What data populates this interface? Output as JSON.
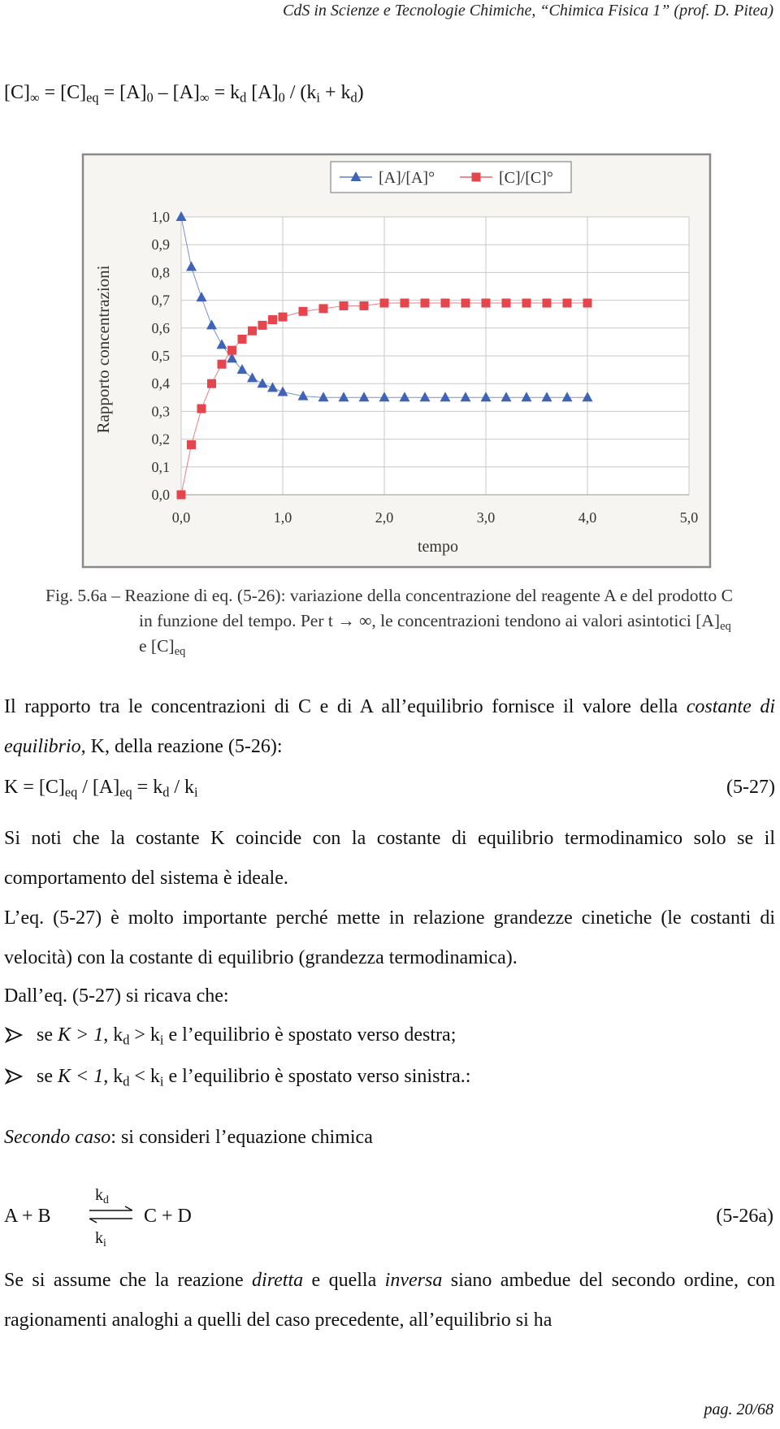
{
  "header": "CdS in Scienze e Tecnologie Chimiche, “Chimica Fisica 1” (prof. D. Pitea)",
  "equation_1": [
    {
      "text": "[C]"
    },
    {
      "text": "∞",
      "sub": true
    },
    {
      "text": " = [C]"
    },
    {
      "text": "eq",
      "sub": true
    },
    {
      "text": " = [A]"
    },
    {
      "text": "0",
      "sub": true
    },
    {
      "text": " – [A]"
    },
    {
      "text": "∞",
      "sub": true
    },
    {
      "text": " = k"
    },
    {
      "text": "d",
      "sub": true
    },
    {
      "text": " [A]"
    },
    {
      "text": "0",
      "sub": true
    },
    {
      "text": " / (k"
    },
    {
      "text": "i",
      "sub": true
    },
    {
      "text": " + k"
    },
    {
      "text": "d",
      "sub": true
    },
    {
      "text": ")"
    }
  ],
  "chart_data": {
    "type": "line",
    "x_label": "tempo",
    "y_label": "Rapporto concentrazioni",
    "x": [
      0,
      0.1,
      0.2,
      0.3,
      0.4,
      0.5,
      0.6,
      0.7,
      0.8,
      0.9,
      1.0,
      1.2,
      1.4,
      1.6,
      1.8,
      2.0,
      2.2,
      2.4,
      2.6,
      2.8,
      3.0,
      3.2,
      3.4,
      3.6,
      3.8,
      4.0
    ],
    "series": [
      {
        "name": "[A]/[A]°",
        "color": "#3f63b5",
        "marker": "triangle",
        "values": [
          1.0,
          0.82,
          0.71,
          0.61,
          0.54,
          0.49,
          0.45,
          0.42,
          0.4,
          0.385,
          0.37,
          0.355,
          0.35,
          0.35,
          0.35,
          0.35,
          0.35,
          0.35,
          0.35,
          0.35,
          0.35,
          0.35,
          0.35,
          0.35,
          0.35,
          0.35
        ]
      },
      {
        "name": "[C]/[C]°",
        "color": "#e5454c",
        "marker": "square",
        "values": [
          0.0,
          0.18,
          0.31,
          0.4,
          0.47,
          0.52,
          0.56,
          0.59,
          0.61,
          0.63,
          0.64,
          0.66,
          0.67,
          0.68,
          0.68,
          0.69,
          0.69,
          0.69,
          0.69,
          0.69,
          0.69,
          0.69,
          0.69,
          0.69,
          0.69,
          0.69
        ]
      }
    ],
    "xlim": [
      0,
      5
    ],
    "xticks": [
      {
        "value": 0,
        "label": "0,0"
      },
      {
        "value": 1,
        "label": "1,0"
      },
      {
        "value": 2,
        "label": "2,0"
      },
      {
        "value": 3,
        "label": "3,0"
      },
      {
        "value": 4,
        "label": "4,0"
      },
      {
        "value": 5,
        "label": "5,0"
      }
    ],
    "ylim": [
      0,
      1
    ],
    "yticks": [
      {
        "value": 0,
        "label": "0,0"
      },
      {
        "value": 0.1,
        "label": "0,1"
      },
      {
        "value": 0.2,
        "label": "0,2"
      },
      {
        "value": 0.3,
        "label": "0,3"
      },
      {
        "value": 0.4,
        "label": "0,4"
      },
      {
        "value": 0.5,
        "label": "0,5"
      },
      {
        "value": 0.6,
        "label": "0,6"
      },
      {
        "value": 0.7,
        "label": "0,7"
      },
      {
        "value": 0.8,
        "label": "0,8"
      },
      {
        "value": 0.9,
        "label": "0,9"
      },
      {
        "value": 1.0,
        "label": "1,0"
      }
    ],
    "grid": true,
    "legend": "top"
  },
  "caption": [
    {
      "text": "Fig. 5.6a – Reazione di eq. (5-26): variazione della concentrazione del reagente A e del prodotto C in funzione del tempo. Per t → ∞, le concentrazioni tendono ai valori asintotici [A]"
    },
    {
      "text": "eq",
      "sub": true
    },
    {
      "text": " e [C]"
    },
    {
      "text": "eq",
      "sub": true
    }
  ],
  "paragraph_1": [
    {
      "text": "Il rapporto tra le concentrazioni di C e di A all’equilibrio fornisce il valore della "
    },
    {
      "text": "costante di equilibrio",
      "italic": true
    },
    {
      "text": ", K, della reazione (5-26):"
    }
  ],
  "equation_2": {
    "runs": [
      {
        "text": "K = [C]"
      },
      {
        "text": "eq",
        "sub": true
      },
      {
        "text": " / [A]"
      },
      {
        "text": "eq",
        "sub": true
      },
      {
        "text": " = k"
      },
      {
        "text": "d",
        "sub": true
      },
      {
        "text": " / k"
      },
      {
        "text": "i",
        "sub": true
      }
    ],
    "number": "(5-27)"
  },
  "paragraph_2": [
    {
      "text": "Si noti che la costante K coincide con la costante di equilibrio termodinamico solo se il comportamento del sistema è ideale."
    }
  ],
  "paragraph_3": [
    {
      "text": "L’eq. (5-27) è molto importante perché mette in relazione grandezze cinetiche (le costanti di velocità) con la costante di equilibrio (grandezza termodinamica)."
    }
  ],
  "paragraph_4": [
    {
      "text": "Dall’eq. (5-27) si ricava che:"
    }
  ],
  "bullets": [
    [
      {
        "text": "se "
      },
      {
        "text": "K > 1",
        "italic": true
      },
      {
        "text": ", k"
      },
      {
        "text": "d",
        "sub": true
      },
      {
        "text": " > k"
      },
      {
        "text": "i",
        "sub": true
      },
      {
        "text": " e l’equilibrio è spostato verso destra;"
      }
    ],
    [
      {
        "text": "se "
      },
      {
        "text": "K < 1",
        "italic": true
      },
      {
        "text": ", k"
      },
      {
        "text": "d",
        "sub": true
      },
      {
        "text": " < k"
      },
      {
        "text": "i",
        "sub": true
      },
      {
        "text": " e l’equilibrio è spostato verso sinistra.:"
      }
    ]
  ],
  "paragraph_5": [
    {
      "text": "Secondo caso",
      "italic": true
    },
    {
      "text": ": si consideri l’equazione chimica"
    }
  ],
  "reaction": {
    "reactants": "A + B",
    "products": "C + D",
    "forward": [
      {
        "text": "k"
      },
      {
        "text": "d",
        "sub": true
      }
    ],
    "reverse": [
      {
        "text": "k"
      },
      {
        "text": "i",
        "sub": true
      }
    ],
    "number": "(5-26a)"
  },
  "paragraph_6": [
    {
      "text": "Se si assume che la reazione "
    },
    {
      "text": "diretta",
      "italic": true
    },
    {
      "text": " e quella "
    },
    {
      "text": "inversa",
      "italic": true
    },
    {
      "text": " siano ambedue del secondo ordine, con ragionamenti analoghi a quelli del caso precedente, all’equilibrio si ha"
    }
  ],
  "footer": "pag. 20/68"
}
